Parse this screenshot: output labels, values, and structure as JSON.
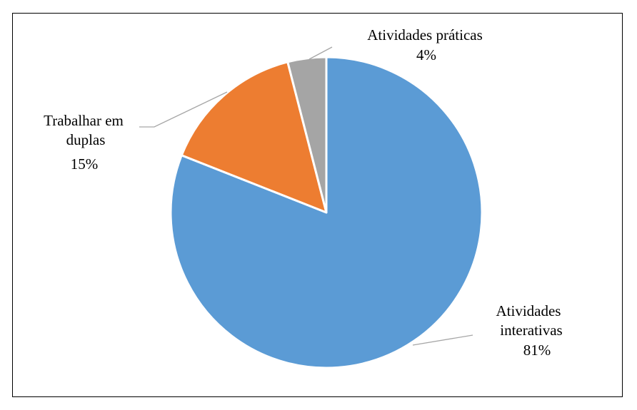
{
  "chart_data": {
    "type": "pie",
    "title": "",
    "slices": [
      {
        "name": "Atividades interativas",
        "value": 81,
        "label_lines": [
          "Atividades",
          "interativas"
        ],
        "value_label": "81%",
        "color": "#5b9bd5"
      },
      {
        "name": "Trabalhar em duplas",
        "value": 15,
        "label_lines": [
          "Trabalhar em",
          "duplas"
        ],
        "value_label": "15%",
        "color": "#ed7d31"
      },
      {
        "name": "Atividades práticas",
        "value": 4,
        "label_lines": [
          "Atividades práticas"
        ],
        "value_label": "4%",
        "color": "#a5a5a5"
      }
    ],
    "start_angle": "12 o'clock",
    "direction": "clockwise",
    "legend": "none",
    "slice_border_color": "#ffffff",
    "leader_line_color": "#a6a6a6"
  }
}
